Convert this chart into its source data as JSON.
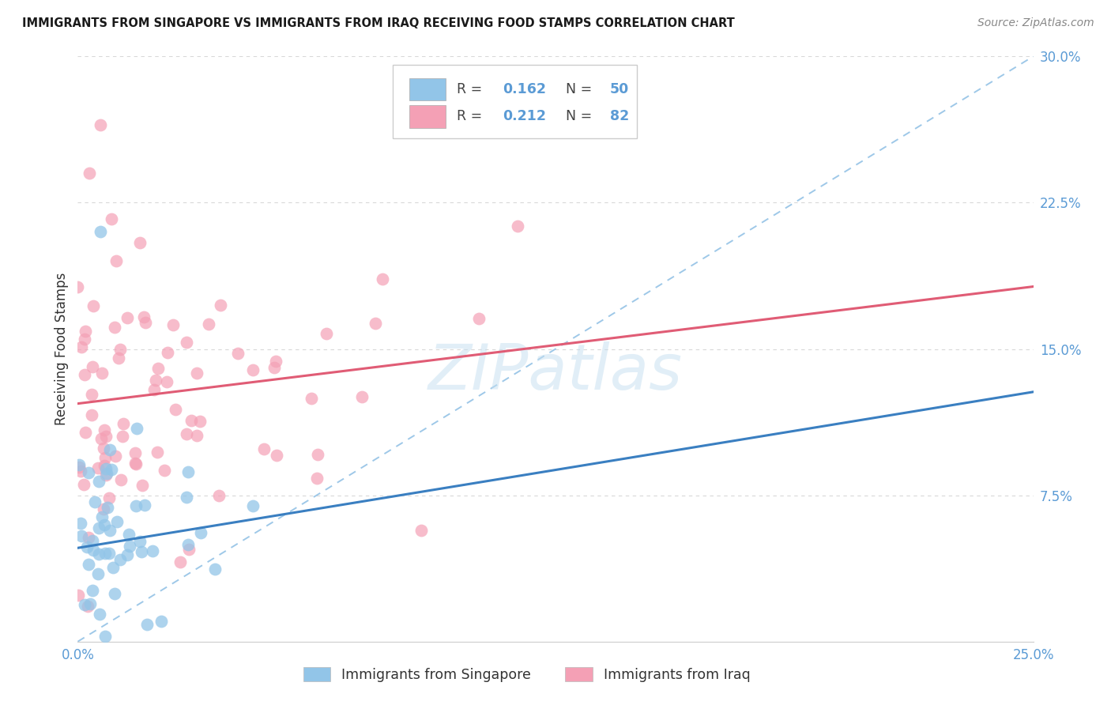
{
  "title": "IMMIGRANTS FROM SINGAPORE VS IMMIGRANTS FROM IRAQ RECEIVING FOOD STAMPS CORRELATION CHART",
  "source": "Source: ZipAtlas.com",
  "ylabel": "Receiving Food Stamps",
  "y_tick_labels_right": [
    "30.0%",
    "22.5%",
    "15.0%",
    "7.5%"
  ],
  "y_ticks_right": [
    0.3,
    0.225,
    0.15,
    0.075
  ],
  "xlim": [
    0.0,
    0.25
  ],
  "ylim": [
    0.0,
    0.3
  ],
  "singapore_color": "#92c5e8",
  "iraq_color": "#f4a0b5",
  "singapore_R": 0.162,
  "singapore_N": 50,
  "iraq_R": 0.212,
  "iraq_N": 82,
  "watermark": "ZIPatlas",
  "legend_label_singapore": "Immigrants from Singapore",
  "legend_label_iraq": "Immigrants from Iraq",
  "sg_line_x0": 0.0,
  "sg_line_y0": 0.048,
  "sg_line_x1": 0.25,
  "sg_line_y1": 0.128,
  "iq_line_x0": 0.0,
  "iq_line_y0": 0.122,
  "iq_line_x1": 0.25,
  "iq_line_y1": 0.182,
  "dash_line_x0": 0.0,
  "dash_line_y0": 0.0,
  "dash_line_x1": 0.25,
  "dash_line_y1": 0.3,
  "title_color": "#1a1a1a",
  "source_color": "#888888",
  "axis_color": "#5b9bd5",
  "text_color": "#333333",
  "grid_color": "#d8d8d8",
  "line_sg_color": "#3a7fc1",
  "line_iq_color": "#e05c75",
  "line_dash_color": "#9ec8e8"
}
